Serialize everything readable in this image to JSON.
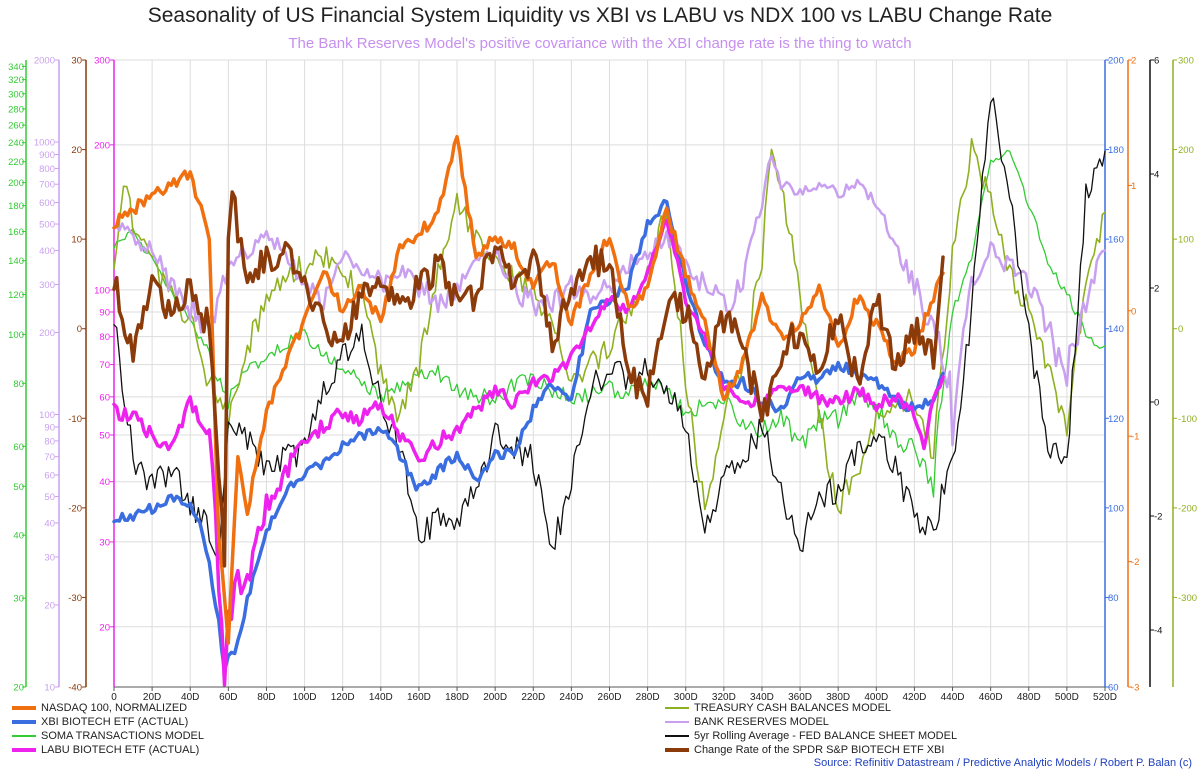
{
  "title": "Seasonality of US Financial System Liquidity vs XBI vs LABU vs NDX 100 vs LABU Change Rate",
  "subtitle": "The Bank Reserves Model's positive covariance with the XBI change rate is the thing to watch",
  "source": "Source: Refinitiv Datastream / Predictive Analytic Models / Robert P. Balan (c)",
  "colors": {
    "subtitle": "#c68ff0",
    "source": "#1f3fbf",
    "nasdaq": "#f07010",
    "xbi": "#3a6ee0",
    "soma": "#33cc33",
    "labu": "#ee22ee",
    "treasury": "#8fb020",
    "reserves": "#c9a0f0",
    "fed": "#111111",
    "change": "#8b3a0a",
    "grid": "#dddddd"
  },
  "chart_data": {
    "type": "line",
    "x": {
      "range": [
        0,
        520
      ],
      "ticks": [
        "0",
        "20D",
        "40D",
        "60D",
        "80D",
        "100D",
        "120D",
        "140D",
        "160D",
        "180D",
        "200D",
        "220D",
        "240D",
        "260D",
        "280D",
        "300D",
        "320D",
        "340D",
        "360D",
        "380D",
        "400D",
        "420D",
        "440D",
        "460D",
        "480D",
        "500D",
        "520D"
      ]
    },
    "axes": [
      {
        "id": "soma_axis",
        "side": "left",
        "scale": "log",
        "color": "#33cc33",
        "range": [
          20,
          350
        ],
        "ticks": [
          "20",
          "30",
          "40",
          "50",
          "60",
          "80",
          "100",
          "120",
          "140",
          "160",
          "180",
          "200",
          "220",
          "240",
          "260",
          "280",
          "300",
          "320",
          "340"
        ]
      },
      {
        "id": "reserves_axis",
        "side": "left",
        "scale": "log",
        "color": "#c9a0f0",
        "range": [
          10,
          2000
        ],
        "ticks": [
          "10",
          "20",
          "30",
          "40",
          "50",
          "60",
          "70",
          "80",
          "90",
          "100",
          "200",
          "300",
          "400",
          "500",
          "600",
          "700",
          "800",
          "900",
          "1000",
          "2000"
        ]
      },
      {
        "id": "change_axis",
        "side": "left",
        "scale": "linear",
        "color": "#8b3a0a",
        "range": [
          -40,
          30
        ],
        "ticks": [
          "-40",
          "-30",
          "-20",
          "-10",
          "0",
          "10",
          "20",
          "30"
        ]
      },
      {
        "id": "labu_axis",
        "side": "left",
        "scale": "log",
        "color": "#ee22ee",
        "range": [
          15,
          300
        ],
        "ticks": [
          "20",
          "30",
          "40",
          "50",
          "60",
          "70",
          "80",
          "90",
          "100",
          "200",
          "300"
        ]
      },
      {
        "id": "xbi_axis",
        "side": "right",
        "scale": "linear",
        "color": "#3a6ee0",
        "range": [
          60,
          200
        ],
        "ticks": [
          "60",
          "80",
          "100",
          "120",
          "140",
          "160",
          "180",
          "200"
        ]
      },
      {
        "id": "nasdaq_axis",
        "side": "right",
        "scale": "linear",
        "color": "#f07010",
        "range": [
          -3,
          2
        ],
        "ticks": [
          "-3",
          "-2",
          "-1",
          "0",
          "1",
          "2"
        ]
      },
      {
        "id": "fed_axis",
        "side": "right",
        "scale": "linear",
        "color": "#111111",
        "range": [
          -5,
          6
        ],
        "ticks": [
          "-4",
          "-2",
          "0",
          "2",
          "4",
          "6"
        ]
      },
      {
        "id": "treasury_axis",
        "side": "right",
        "scale": "linear",
        "color": "#8fb020",
        "range": [
          -400,
          300
        ],
        "ticks": [
          "-300",
          "-200",
          "-100",
          "0",
          "100",
          "200",
          "300"
        ]
      }
    ],
    "series": [
      {
        "key": "nasdaq",
        "name": "NASDAQ 100, NORMALIZED",
        "axis": "nasdaq_axis",
        "color": "#f07010",
        "width": 3.5,
        "volatility": 0.05,
        "x": [
          0,
          10,
          20,
          30,
          40,
          50,
          55,
          60,
          65,
          70,
          80,
          90,
          100,
          110,
          120,
          130,
          140,
          150,
          160,
          170,
          180,
          190,
          200,
          210,
          220,
          230,
          240,
          250,
          260,
          270,
          280,
          290,
          300,
          310,
          320,
          330,
          340,
          350,
          360,
          370,
          380,
          390,
          400,
          410,
          420,
          430,
          435
        ],
        "y": [
          0.7,
          0.8,
          0.95,
          1.0,
          1.1,
          0.6,
          -1.8,
          -2.6,
          -1.2,
          -1.6,
          -0.8,
          -0.4,
          -0.1,
          0.3,
          0.0,
          0.2,
          -0.1,
          0.5,
          0.6,
          0.8,
          1.4,
          0.4,
          0.6,
          0.5,
          0.2,
          0.4,
          -0.1,
          0.3,
          0.6,
          0.0,
          0.2,
          0.8,
          0.3,
          -0.1,
          -0.7,
          -0.4,
          0.1,
          -0.2,
          -0.1,
          0.2,
          -0.3,
          0.1,
          -0.1,
          -0.4,
          -0.3,
          0.1,
          0.3
        ]
      },
      {
        "key": "xbi",
        "name": "XBI BIOTECH ETF (ACTUAL)",
        "axis": "xbi_axis",
        "color": "#3a6ee0",
        "width": 3.5,
        "volatility": 1.2,
        "x": [
          0,
          10,
          20,
          30,
          40,
          45,
          50,
          55,
          58,
          60,
          65,
          70,
          80,
          90,
          100,
          110,
          120,
          130,
          140,
          150,
          160,
          170,
          180,
          190,
          200,
          210,
          220,
          230,
          240,
          250,
          260,
          270,
          280,
          290,
          300,
          310,
          320,
          330,
          340,
          350,
          360,
          370,
          380,
          390,
          400,
          410,
          420,
          430,
          435
        ],
        "y": [
          98,
          98,
          100,
          102,
          100,
          96,
          88,
          74,
          64,
          66,
          70,
          80,
          94,
          104,
          108,
          110,
          114,
          116,
          118,
          112,
          104,
          108,
          112,
          106,
          112,
          112,
          122,
          128,
          124,
          144,
          146,
          150,
          164,
          168,
          150,
          136,
          128,
          128,
          124,
          122,
          130,
          128,
          132,
          130,
          128,
          124,
          122,
          124,
          130
        ]
      },
      {
        "key": "soma",
        "name": "SOMA TRANSACTIONS MODEL",
        "axis": "soma_axis",
        "color": "#33cc33",
        "width": 1.3,
        "volatility": 3,
        "x": [
          0,
          10,
          20,
          30,
          40,
          50,
          60,
          70,
          80,
          90,
          100,
          110,
          120,
          130,
          140,
          150,
          160,
          170,
          180,
          190,
          200,
          210,
          220,
          230,
          240,
          250,
          260,
          270,
          280,
          290,
          300,
          310,
          320,
          330,
          340,
          350,
          360,
          370,
          380,
          390,
          400,
          410,
          420,
          430,
          440,
          450,
          460,
          470,
          480,
          490,
          500,
          510,
          520
        ],
        "y": [
          150,
          160,
          140,
          120,
          108,
          90,
          74,
          84,
          92,
          96,
          100,
          90,
          86,
          80,
          76,
          78,
          82,
          84,
          78,
          76,
          74,
          80,
          82,
          78,
          74,
          76,
          78,
          76,
          80,
          78,
          70,
          72,
          74,
          66,
          64,
          70,
          60,
          68,
          68,
          76,
          72,
          62,
          60,
          50,
          110,
          140,
          220,
          230,
          180,
          140,
          120,
          100,
          95
        ]
      },
      {
        "key": "labu",
        "name": "LABU BIOTECH ETF (ACTUAL)",
        "axis": "labu_axis",
        "color": "#ee22ee",
        "width": 3.5,
        "volatility": 2,
        "x": [
          0,
          10,
          20,
          30,
          40,
          50,
          55,
          58,
          60,
          65,
          70,
          80,
          90,
          100,
          110,
          120,
          130,
          140,
          150,
          160,
          170,
          180,
          190,
          200,
          210,
          220,
          230,
          240,
          250,
          260,
          270,
          280,
          290,
          300,
          310,
          320,
          330,
          340,
          350,
          360,
          370,
          380,
          390,
          400,
          410,
          420,
          425,
          430,
          435
        ],
        "y": [
          56,
          55,
          50,
          48,
          58,
          50,
          25,
          16,
          20,
          26,
          24,
          36,
          42,
          48,
          52,
          56,
          54,
          58,
          50,
          44,
          48,
          52,
          56,
          62,
          58,
          64,
          66,
          72,
          84,
          96,
          90,
          108,
          140,
          94,
          80,
          62,
          60,
          58,
          64,
          62,
          60,
          58,
          62,
          58,
          60,
          56,
          48,
          60,
          66
        ]
      },
      {
        "key": "treasury",
        "name": "TREASURY CASH BALANCES MODEL",
        "axis": "treasury_axis",
        "color": "#8fb020",
        "width": 1.6,
        "volatility": 14,
        "x": [
          0,
          5,
          10,
          20,
          30,
          40,
          50,
          60,
          70,
          80,
          90,
          100,
          110,
          120,
          130,
          140,
          150,
          160,
          170,
          180,
          190,
          200,
          210,
          220,
          230,
          240,
          250,
          260,
          270,
          280,
          290,
          300,
          310,
          320,
          330,
          340,
          345,
          350,
          360,
          370,
          380,
          390,
          400,
          410,
          420,
          430,
          440,
          450,
          460,
          470,
          480,
          490,
          500,
          510,
          520
        ],
        "y": [
          80,
          160,
          120,
          70,
          40,
          10,
          -60,
          -100,
          -20,
          30,
          60,
          70,
          80,
          60,
          40,
          -50,
          -100,
          -40,
          60,
          140,
          100,
          80,
          60,
          40,
          0,
          -60,
          -40,
          -20,
          20,
          60,
          140,
          -60,
          -200,
          -100,
          -40,
          80,
          200,
          160,
          40,
          -100,
          -200,
          -160,
          -100,
          -80,
          -80,
          -140,
          80,
          200,
          140,
          60,
          20,
          -40,
          -120,
          60,
          130
        ]
      },
      {
        "key": "reserves",
        "name": "BANK RESERVES MODEL",
        "axis": "reserves_axis",
        "color": "#c9a0f0",
        "width": 2.5,
        "volatility": 30,
        "x": [
          0,
          10,
          20,
          30,
          40,
          50,
          60,
          70,
          80,
          90,
          100,
          110,
          120,
          130,
          140,
          150,
          160,
          170,
          180,
          190,
          200,
          210,
          220,
          230,
          240,
          250,
          260,
          270,
          280,
          290,
          300,
          310,
          320,
          330,
          340,
          345,
          350,
          360,
          370,
          380,
          390,
          400,
          410,
          420,
          430,
          440,
          450,
          460,
          470,
          480,
          490,
          500,
          510,
          520
        ],
        "y": [
          500,
          450,
          400,
          300,
          250,
          200,
          350,
          400,
          450,
          400,
          300,
          250,
          400,
          350,
          300,
          350,
          300,
          250,
          300,
          350,
          400,
          300,
          250,
          260,
          300,
          250,
          300,
          350,
          400,
          450,
          350,
          300,
          250,
          300,
          600,
          900,
          700,
          650,
          700,
          650,
          700,
          600,
          400,
          300,
          200,
          100,
          300,
          400,
          350,
          300,
          200,
          150,
          250,
          400
        ]
      },
      {
        "key": "fed",
        "name": "5yr Rolling Average - FED BALANCE SHEET MODEL",
        "axis": "fed_axis",
        "color": "#111111",
        "width": 1.3,
        "volatility": 0.25,
        "x": [
          0,
          10,
          20,
          30,
          40,
          50,
          55,
          60,
          70,
          80,
          90,
          100,
          110,
          120,
          130,
          140,
          150,
          160,
          170,
          180,
          190,
          200,
          210,
          220,
          230,
          240,
          250,
          260,
          270,
          280,
          290,
          300,
          310,
          320,
          330,
          340,
          350,
          360,
          370,
          380,
          390,
          400,
          410,
          420,
          430,
          440,
          450,
          460,
          470,
          480,
          490,
          500,
          510,
          520
        ],
        "y": [
          1.5,
          -1.0,
          -1.5,
          -1.2,
          -1.8,
          -2.2,
          -3.0,
          -0.4,
          -0.6,
          -1.2,
          -1.0,
          -0.8,
          0.2,
          0.8,
          1.2,
          0.0,
          -0.8,
          -2.4,
          -2.0,
          -2.0,
          -1.6,
          -0.6,
          -0.8,
          -1.0,
          -2.6,
          -1.4,
          0.2,
          0.6,
          0.4,
          0.6,
          0.2,
          -0.4,
          -2.2,
          -1.4,
          -1.0,
          -0.4,
          -1.6,
          -2.6,
          -1.6,
          -1.6,
          -0.8,
          -0.6,
          -1.2,
          -2.0,
          -2.2,
          -1.0,
          1.6,
          5.4,
          3.6,
          1.2,
          -0.8,
          -1.0,
          3.6,
          4.4
        ]
      },
      {
        "key": "change",
        "name": "Change Rate of the SPDR S&P BIOTECH ETF XBI",
        "axis": "change_axis",
        "color": "#8b3a0a",
        "width": 3.5,
        "volatility": 1.8,
        "x": [
          0,
          10,
          20,
          30,
          40,
          50,
          55,
          58,
          60,
          62,
          65,
          70,
          80,
          90,
          100,
          110,
          120,
          130,
          140,
          150,
          160,
          170,
          180,
          190,
          200,
          210,
          220,
          230,
          240,
          250,
          260,
          270,
          280,
          290,
          300,
          310,
          320,
          330,
          340,
          350,
          360,
          370,
          380,
          390,
          400,
          410,
          420,
          430,
          435
        ],
        "y": [
          5,
          -2,
          5,
          2,
          4,
          0,
          -15,
          -27,
          10,
          17,
          10,
          5,
          8,
          9,
          6,
          0,
          -1,
          4,
          6,
          2,
          5,
          7,
          3,
          3,
          10,
          4,
          8,
          -2,
          5,
          8,
          7,
          -5,
          -8,
          3,
          2,
          -5,
          1,
          -2,
          -10,
          -3,
          0,
          -4,
          2,
          -6,
          4,
          -4,
          0,
          -3,
          8
        ]
      }
    ]
  }
}
